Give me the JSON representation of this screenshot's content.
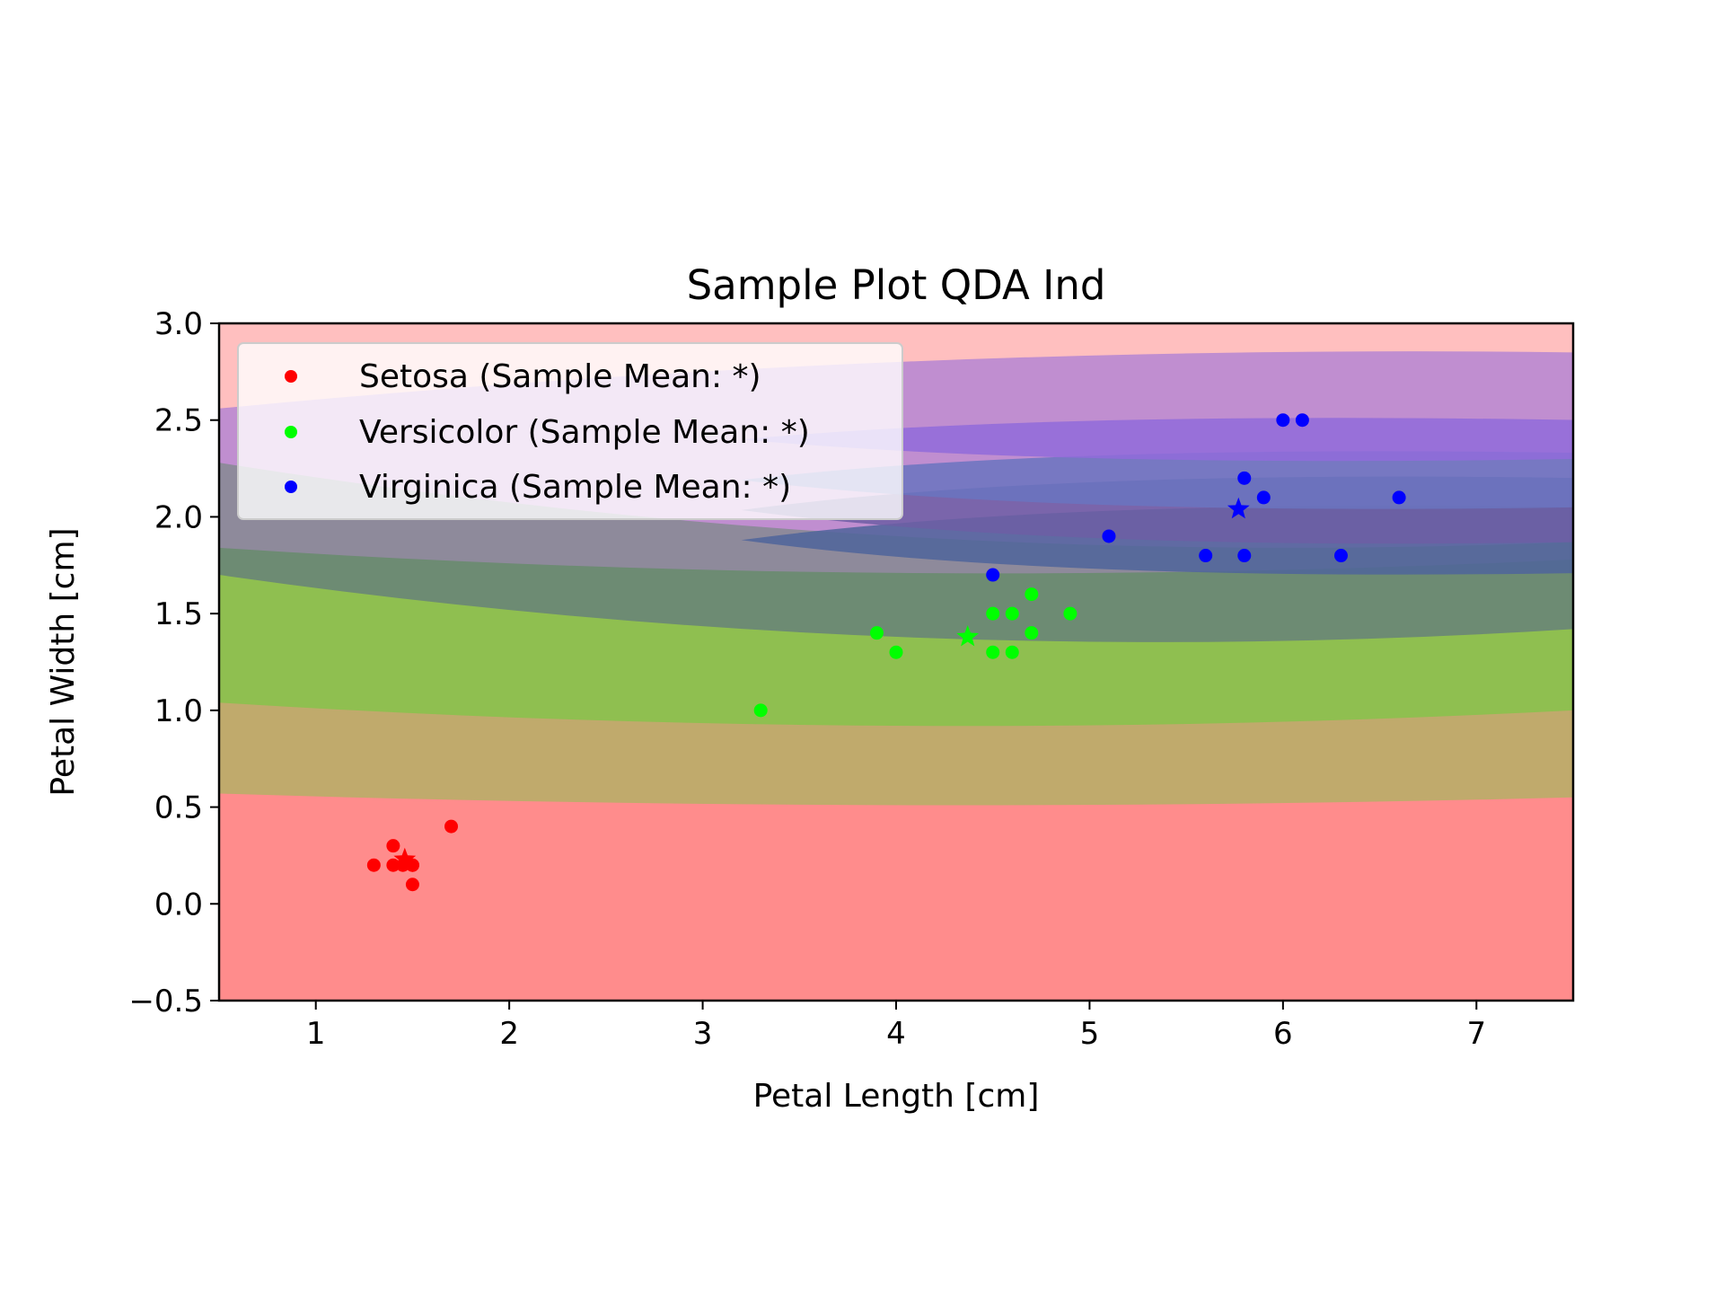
{
  "chart_data": {
    "type": "scatter",
    "title": "Sample Plot QDA Ind",
    "xlabel": "Petal Length [cm]",
    "ylabel": "Petal Width [cm]",
    "xlim": [
      0.5,
      7.5
    ],
    "ylim": [
      -0.5,
      3.0
    ],
    "x_ticks": [
      {
        "value": 1,
        "label": "1"
      },
      {
        "value": 2,
        "label": "2"
      },
      {
        "value": 3,
        "label": "3"
      },
      {
        "value": 4,
        "label": "4"
      },
      {
        "value": 5,
        "label": "5"
      },
      {
        "value": 6,
        "label": "6"
      },
      {
        "value": 7,
        "label": "7"
      }
    ],
    "y_ticks": [
      {
        "value": -0.5,
        "label": "−0.5"
      },
      {
        "value": 0.0,
        "label": "0.0"
      },
      {
        "value": 0.5,
        "label": "0.5"
      },
      {
        "value": 1.0,
        "label": "1.0"
      },
      {
        "value": 1.5,
        "label": "1.5"
      },
      {
        "value": 2.0,
        "label": "2.0"
      },
      {
        "value": 2.5,
        "label": "2.5"
      },
      {
        "value": 3.0,
        "label": "3.0"
      }
    ],
    "grid": false,
    "legend_position": "top-left",
    "background_color": "#ffbfbf",
    "series": [
      {
        "name": "Setosa (Sample Mean: *)",
        "color": "#ff0000",
        "points": [
          {
            "x": 1.3,
            "y": 0.2
          },
          {
            "x": 1.4,
            "y": 0.2
          },
          {
            "x": 1.4,
            "y": 0.3
          },
          {
            "x": 1.45,
            "y": 0.2
          },
          {
            "x": 1.5,
            "y": 0.2
          },
          {
            "x": 1.5,
            "y": 0.2
          },
          {
            "x": 1.5,
            "y": 0.1
          },
          {
            "x": 1.7,
            "y": 0.4
          }
        ],
        "mean": {
          "x": 1.46,
          "y": 0.23
        }
      },
      {
        "name": "Versicolor (Sample Mean: *)",
        "color": "#00ff00",
        "points": [
          {
            "x": 3.3,
            "y": 1.0
          },
          {
            "x": 3.9,
            "y": 1.4
          },
          {
            "x": 4.0,
            "y": 1.3
          },
          {
            "x": 4.5,
            "y": 1.5
          },
          {
            "x": 4.5,
            "y": 1.3
          },
          {
            "x": 4.6,
            "y": 1.5
          },
          {
            "x": 4.6,
            "y": 1.3
          },
          {
            "x": 4.7,
            "y": 1.6
          },
          {
            "x": 4.7,
            "y": 1.4
          },
          {
            "x": 4.9,
            "y": 1.5
          }
        ],
        "mean": {
          "x": 4.37,
          "y": 1.38
        }
      },
      {
        "name": "Virginica (Sample Mean: *)",
        "color": "#0000ff",
        "points": [
          {
            "x": 4.5,
            "y": 1.7
          },
          {
            "x": 5.1,
            "y": 1.9
          },
          {
            "x": 5.6,
            "y": 1.8
          },
          {
            "x": 5.8,
            "y": 2.2
          },
          {
            "x": 5.8,
            "y": 1.8
          },
          {
            "x": 5.9,
            "y": 2.1
          },
          {
            "x": 6.0,
            "y": 2.5
          },
          {
            "x": 6.1,
            "y": 2.5
          },
          {
            "x": 6.3,
            "y": 1.8
          },
          {
            "x": 6.6,
            "y": 2.1
          }
        ],
        "mean": {
          "x": 5.77,
          "y": 2.04
        }
      }
    ],
    "decision_bands": [
      {
        "color": "#ff8c8c",
        "y_left": 0.57,
        "y_mid": 0.51,
        "y_right": 0.55
      },
      {
        "color": "#c0aa6c",
        "y_left": 1.04,
        "y_mid": 0.92,
        "y_right": 1.0
      },
      {
        "color": "#8fbf50",
        "y_left": 1.7,
        "y_mid": 1.38,
        "y_right": 1.42
      },
      {
        "color": "#6d8b73",
        "y_left": 1.84,
        "y_mid": 1.71,
        "y_right": 1.78
      },
      {
        "color": "#8e8a9b",
        "y_left": 2.28,
        "y_mid": 1.9,
        "y_right": 1.87
      },
      {
        "color": "#c08ed0",
        "y_left": 2.56,
        "y_mid": 2.8,
        "y_right": 2.85
      }
    ],
    "decision_regions_right": [
      {
        "color": "#4f649b",
        "y_low": 1.71,
        "y_high": 2.05
      },
      {
        "color": "#6d5ea5",
        "y_low": 1.87,
        "y_high": 2.2
      },
      {
        "color": "#6a74c0",
        "y_low": 2.05,
        "y_high": 2.33
      },
      {
        "color": "#906bdb",
        "y_low": 2.3,
        "y_high": 2.5
      }
    ]
  }
}
